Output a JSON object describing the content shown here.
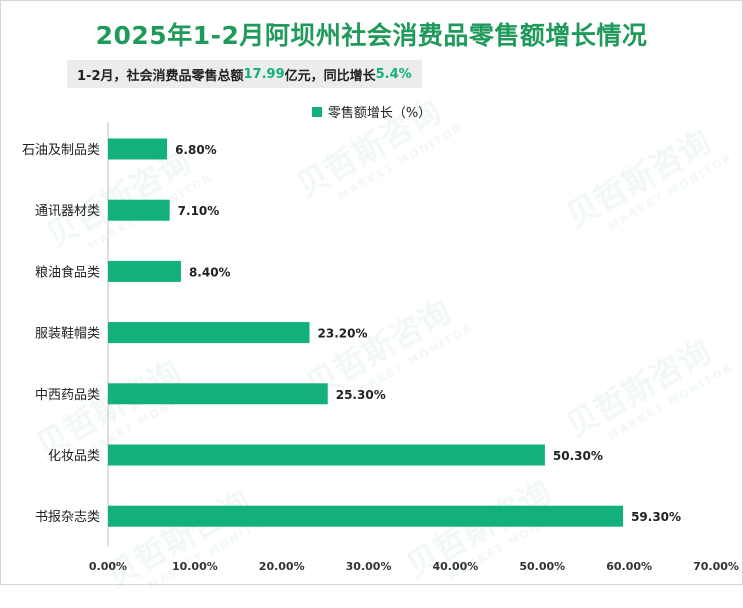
{
  "title": "2025年1-2月阿坝州社会消费品零售额增长情况",
  "subtitle": {
    "prefix": "1-2月，社会消费品零售总额",
    "total": "17.99",
    "middle": "亿元，同比增长",
    "growth": "5.4%"
  },
  "watermark": {
    "cn": "贝哲斯咨询",
    "en": "MARKET MONITOR"
  },
  "colors": {
    "bar": "#11b07c",
    "title": "#1f9a5a",
    "highlight": "#11b07c"
  },
  "chart_data": {
    "type": "bar",
    "orientation": "horizontal",
    "categories": [
      "石油及制品类",
      "通讯器材类",
      "粮油食品类",
      "服装鞋帽类",
      "中西药品类",
      "化妆品类",
      "书报杂志类"
    ],
    "series": [
      {
        "name": "零售额增长（%）",
        "values": [
          6.8,
          7.1,
          8.4,
          23.2,
          25.3,
          50.3,
          59.3
        ],
        "labels": [
          "6.80%",
          "7.10%",
          "8.40%",
          "23.20%",
          "25.30%",
          "50.30%",
          "59.30%"
        ]
      }
    ],
    "xlim": [
      0,
      70
    ],
    "xticks": [
      0,
      10,
      20,
      30,
      40,
      50,
      60,
      70
    ],
    "xtick_labels": [
      "0.00%",
      "10.00%",
      "20.00%",
      "30.00%",
      "40.00%",
      "50.00%",
      "60.00%",
      "70.00%"
    ],
    "legend_position": "top",
    "grid": false
  }
}
